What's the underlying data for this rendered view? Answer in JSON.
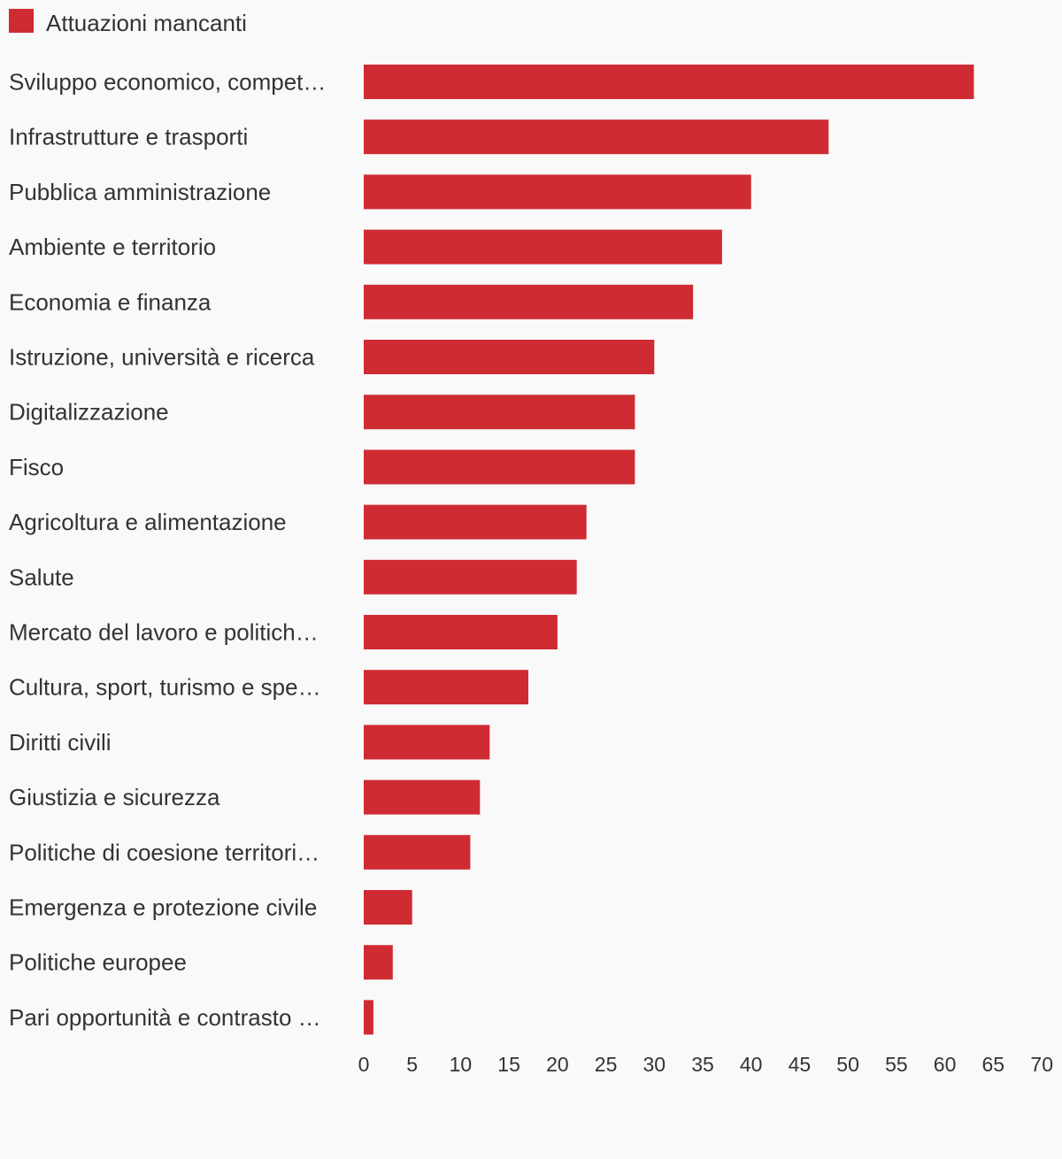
{
  "chart_data": {
    "type": "bar",
    "orientation": "horizontal",
    "categories": [
      "Sviluppo economico, competitività e innovazione",
      "Infrastrutture e trasporti",
      "Pubblica amministrazione",
      "Ambiente e territorio",
      "Economia e finanza",
      "Istruzione, università e ricerca",
      "Digitalizzazione",
      "Fisco",
      "Agricoltura e alimentazione",
      "Salute",
      "Mercato del lavoro e politiche sociali",
      "Cultura, sport, turismo e spettacolo",
      "Diritti civili",
      "Giustizia e sicurezza",
      "Politiche di coesione territoriale",
      "Emergenza e protezione civile",
      "Politiche europee",
      "Pari opportunità e contrasto alle discriminazioni"
    ],
    "display_labels": [
      "Sviluppo economico, compet…",
      "Infrastrutture e trasporti",
      "Pubblica amministrazione",
      "Ambiente e territorio",
      "Economia e finanza",
      "Istruzione, università e ricerca",
      "Digitalizzazione",
      "Fisco",
      "Agricoltura e alimentazione",
      "Salute",
      "Mercato del lavoro e politich…",
      "Cultura, sport, turismo e spe…",
      "Diritti civili",
      "Giustizia e sicurezza",
      "Politiche di coesione territori…",
      "Emergenza e protezione civile",
      "Politiche europee",
      "Pari opportunità e contrasto …"
    ],
    "series": [
      {
        "name": "Attuazioni mancanti",
        "color": "#cf2b33",
        "values": [
          63,
          48,
          40,
          37,
          34,
          30,
          28,
          28,
          23,
          22,
          20,
          17,
          13,
          12,
          11,
          5,
          3,
          1
        ]
      }
    ],
    "xticks": [
      "0",
      "5",
      "10",
      "15",
      "20",
      "25",
      "30",
      "35",
      "40",
      "45",
      "50",
      "55",
      "60",
      "65",
      "70"
    ],
    "xlim": [
      0,
      70
    ],
    "grid": false,
    "legend": "top-left",
    "title": "",
    "xlabel": "",
    "ylabel": ""
  }
}
